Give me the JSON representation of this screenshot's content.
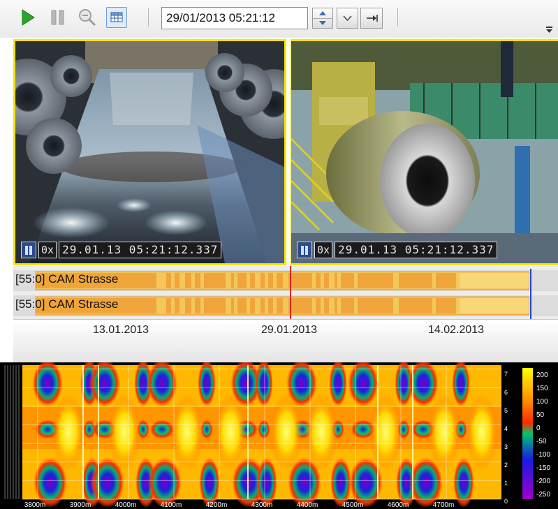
{
  "toolbar": {
    "play_icon": "play-icon",
    "pause_icon": "pause-icon",
    "zoom_icon": "zoom-out-icon",
    "grid_icon": "grid-icon",
    "datetime_value": "29/01/2013 05:21:12",
    "spin_icon": "spin-up-down-icon",
    "dropdown_icon": "chevron-down-icon",
    "goto_icon": "goto-arrow-icon",
    "overflow_icon": "toolbar-overflow-icon"
  },
  "cameras": [
    {
      "speed": "0x",
      "timestamp": "29.01.13  05:21:12.337"
    },
    {
      "speed": "0x",
      "timestamp": "29.01.13  05:21:12.337"
    }
  ],
  "timeline": {
    "tracks": [
      {
        "label": "[55:0] CAM Strasse"
      },
      {
        "label": "[55:0] CAM Strasse"
      }
    ],
    "ticks": [
      "13.01.2013",
      "29.01.2013",
      "14.02.2013"
    ]
  },
  "spectrogram": {
    "x_ticks": [
      "3800m",
      "3900m",
      "4000m",
      "4100m",
      "4200m",
      "4300m",
      "4400m",
      "4500m",
      "4600m",
      "4700m"
    ],
    "y_ticks": [
      "7",
      "6",
      "5",
      "4",
      "3",
      "2",
      "1",
      "0"
    ],
    "colorbar_ticks": [
      "200",
      "150",
      "100",
      "50",
      "0",
      "-50",
      "-100",
      "-150",
      "-200",
      "-250"
    ],
    "colors": {
      "high": "#ffff00",
      "mid": "#ff2a00",
      "zero": "#00c86e",
      "low": "#1a1ae6",
      "min": "#a000c8"
    }
  }
}
